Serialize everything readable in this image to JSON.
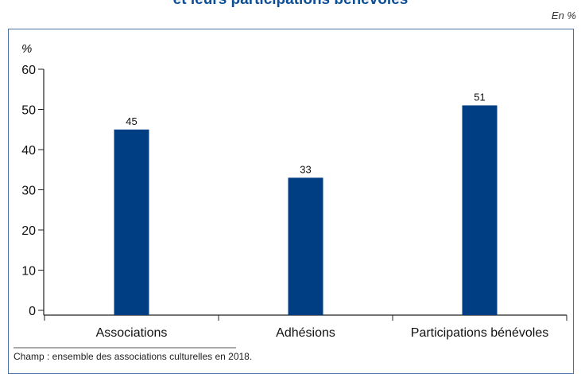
{
  "header": {
    "title_fragment": "et leurs participations bénévoles",
    "unit_note": "En %"
  },
  "footer": {
    "champ": "Champ : ensemble des associations culturelles en 2018."
  },
  "colors": {
    "bar": "#003e84",
    "frame": "#4a6fa5",
    "title": "#0d4f96"
  },
  "chart_data": {
    "type": "bar",
    "categories": [
      "Associations",
      "Adhésions",
      "Participations bénévoles"
    ],
    "values": [
      45,
      33,
      51
    ],
    "data_labels": [
      "45",
      "33",
      "51"
    ],
    "ylabel": "%",
    "ylim": [
      0,
      60
    ],
    "yticks": [
      0,
      10,
      20,
      30,
      40,
      50,
      60
    ],
    "grid": false,
    "legend": "none"
  }
}
